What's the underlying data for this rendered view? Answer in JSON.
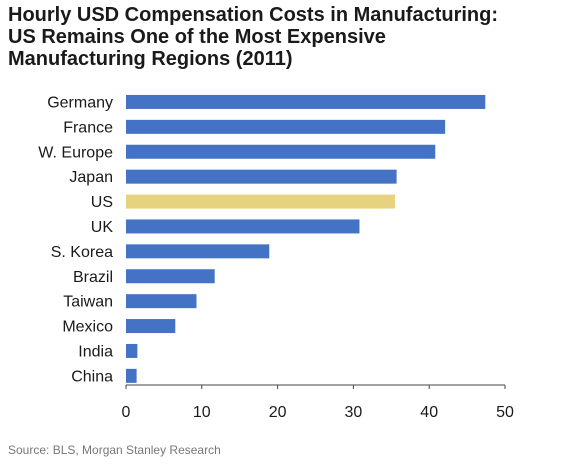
{
  "chart_data": {
    "type": "bar",
    "orientation": "horizontal",
    "title_lines": [
      "Hourly USD Compensation Costs in Manufacturing:",
      "US Remains One of the Most Expensive",
      "Manufacturing Regions (2011)"
    ],
    "categories": [
      "Germany",
      "France",
      "W. Europe",
      "Japan",
      "US",
      "UK",
      "S. Korea",
      "Brazil",
      "Taiwan",
      "Mexico",
      "India",
      "China"
    ],
    "values": [
      47.4,
      42.1,
      40.8,
      35.7,
      35.5,
      30.8,
      18.9,
      11.7,
      9.3,
      6.5,
      1.5,
      1.4
    ],
    "highlight_category": "US",
    "colors": {
      "default": "#4472c4",
      "highlight": "#e6d27f"
    },
    "xlim": [
      0,
      50
    ],
    "xticks": [
      0,
      10,
      20,
      30,
      40,
      50
    ],
    "grid": false,
    "source": "Source: BLS, Morgan Stanley Research"
  }
}
